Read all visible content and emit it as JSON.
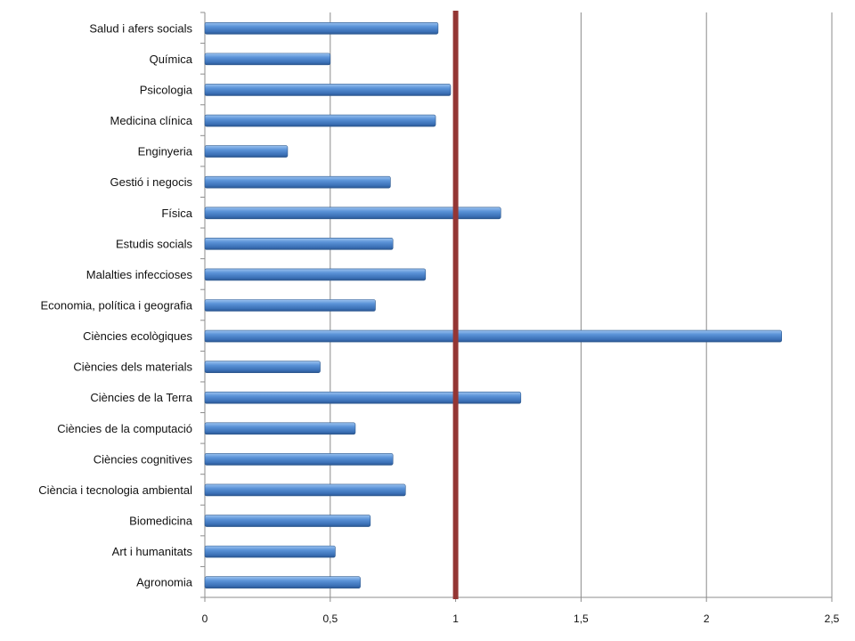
{
  "chart_data": {
    "type": "bar",
    "orientation": "horizontal",
    "title": "",
    "xlabel": "",
    "ylabel": "",
    "categories": [
      "Salud i afers socials",
      "Química",
      "Psicologia",
      "Medicina clínica",
      "Enginyeria",
      "Gestió i negocis",
      "Física",
      "Estudis socials",
      "Malalties infeccioses",
      "Economia, política i geografia",
      "Ciències ecològiques",
      "Ciències dels materials",
      "Ciències de la Terra",
      "Ciències de la computació",
      "Ciències cognitives",
      "Ciència i tecnologia ambiental",
      "Biomedicina",
      "Art i humanitats",
      "Agronomia"
    ],
    "values": [
      0.93,
      0.5,
      0.98,
      0.92,
      0.33,
      0.74,
      1.18,
      0.75,
      0.88,
      0.68,
      2.3,
      0.46,
      1.26,
      0.6,
      0.75,
      0.8,
      0.66,
      0.52,
      0.62
    ],
    "xlim": [
      0,
      2.5
    ],
    "xticks": [
      "0",
      "0,5",
      "1",
      "1,5",
      "2",
      "2,5"
    ],
    "xtick_values": [
      0,
      0.5,
      1,
      1.5,
      2,
      2.5
    ],
    "grid": "vertical",
    "reference_line": {
      "value": 1,
      "color": "#943634"
    },
    "bar_color": "#4F81BD",
    "legend": "none"
  }
}
